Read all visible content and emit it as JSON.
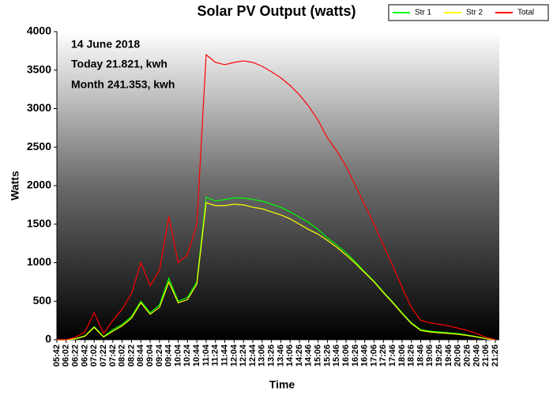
{
  "chart_data": {
    "type": "line",
    "title": "Solar PV Output (watts)",
    "x_label": "Time",
    "y_label": "Watts",
    "annotations": [
      "14 June 2018",
      "Today 21.821, kwh",
      "Month 241.353, kwh"
    ],
    "categories": [
      "05:42",
      "06:02",
      "06:22",
      "06:42",
      "07:02",
      "07:22",
      "07:42",
      "08:02",
      "08:22",
      "08:44",
      "09:04",
      "09:24",
      "09:44",
      "10:04",
      "10:24",
      "10:44",
      "11:04",
      "11:24",
      "11:44",
      "12:04",
      "12:24",
      "12:44",
      "13:06",
      "13:26",
      "13:46",
      "14:06",
      "14:26",
      "14:46",
      "15:06",
      "15:26",
      "15:46",
      "16:06",
      "16:26",
      "16:46",
      "17:06",
      "17:26",
      "17:46",
      "18:06",
      "18:26",
      "18:46",
      "19:06",
      "19:26",
      "19:46",
      "20:06",
      "20:26",
      "20:46",
      "21:06",
      "21:26"
    ],
    "series": [
      {
        "name": "Str 1",
        "color": "#00ff00",
        "values": [
          0,
          0,
          15,
          50,
          170,
          40,
          130,
          200,
          300,
          500,
          350,
          450,
          800,
          500,
          550,
          750,
          1850,
          1800,
          1820,
          1840,
          1840,
          1820,
          1800,
          1760,
          1720,
          1660,
          1590,
          1520,
          1430,
          1320,
          1230,
          1130,
          1010,
          880,
          760,
          620,
          490,
          350,
          220,
          130,
          110,
          100,
          90,
          80,
          60,
          40,
          15,
          0
        ]
      },
      {
        "name": "Str 2",
        "color": "#ffff00",
        "values": [
          0,
          0,
          10,
          45,
          160,
          35,
          110,
          180,
          280,
          480,
          330,
          420,
          750,
          480,
          520,
          720,
          1780,
          1740,
          1740,
          1760,
          1750,
          1720,
          1700,
          1660,
          1620,
          1570,
          1500,
          1430,
          1370,
          1290,
          1200,
          1100,
          990,
          870,
          750,
          610,
          480,
          340,
          210,
          120,
          100,
          90,
          80,
          70,
          55,
          35,
          12,
          0
        ]
      },
      {
        "name": "Total",
        "color": "#ff0000",
        "values": [
          0,
          0,
          30,
          100,
          350,
          80,
          250,
          400,
          600,
          1000,
          700,
          900,
          1600,
          1000,
          1100,
          1500,
          3700,
          3600,
          3570,
          3600,
          3620,
          3600,
          3550,
          3480,
          3400,
          3300,
          3180,
          3030,
          2850,
          2620,
          2450,
          2250,
          2000,
          1750,
          1500,
          1230,
          960,
          680,
          420,
          250,
          220,
          200,
          180,
          150,
          120,
          80,
          30,
          0
        ]
      }
    ],
    "ylim": [
      0,
      4000
    ],
    "yticks": [
      0,
      500,
      1000,
      1500,
      2000,
      2500,
      3000,
      3500,
      4000
    ],
    "legend": "top-right"
  }
}
